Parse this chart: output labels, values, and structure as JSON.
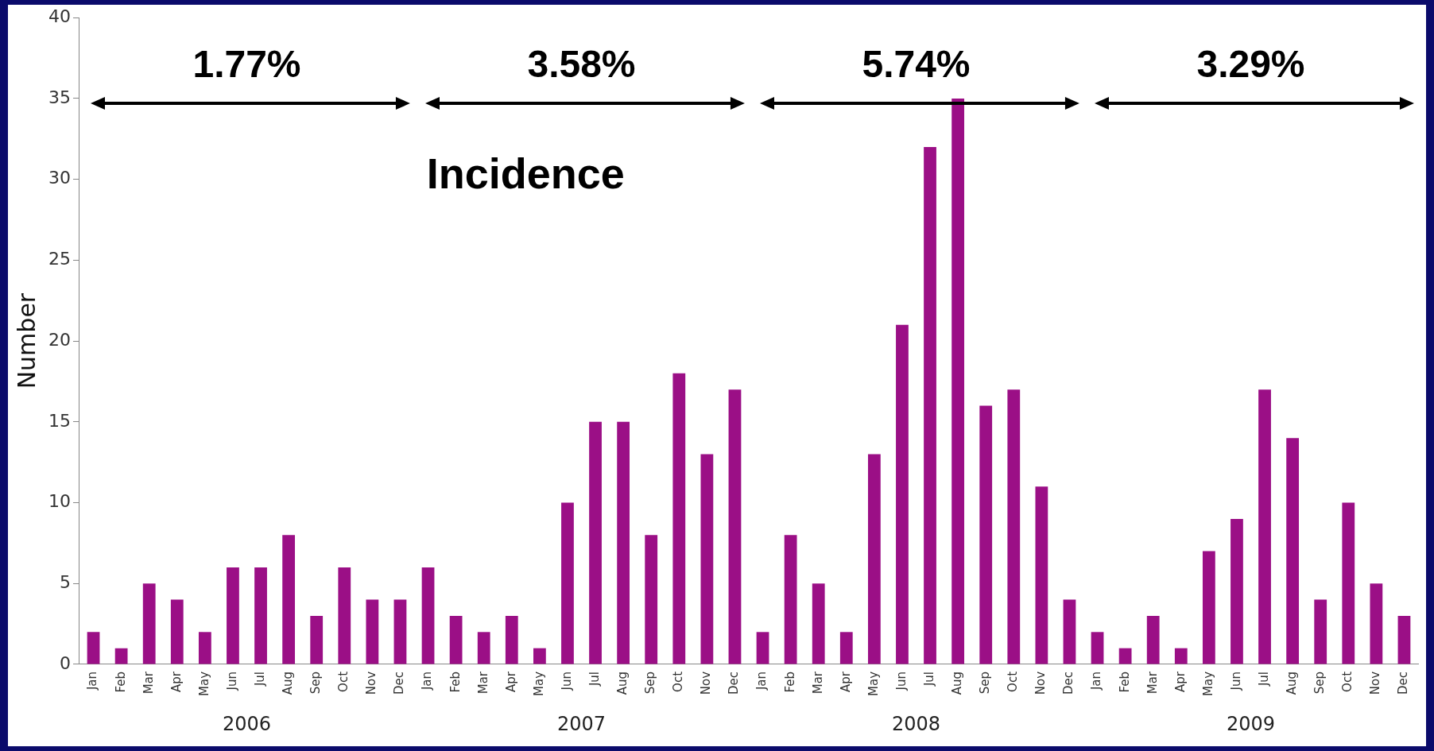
{
  "chart_data": {
    "type": "bar",
    "ylabel": "Number",
    "categories": [
      "Jan",
      "Feb",
      "Mar",
      "Apr",
      "May",
      "Jun",
      "Jul",
      "Aug",
      "Sep",
      "Oct",
      "Nov",
      "Dec",
      "Jan",
      "Feb",
      "Mar",
      "Apr",
      "May",
      "Jun",
      "Jul",
      "Aug",
      "Sep",
      "Oct",
      "Nov",
      "Dec",
      "Jan",
      "Feb",
      "Mar",
      "Apr",
      "May",
      "Jun",
      "Jul",
      "Aug",
      "Sep",
      "Oct",
      "Nov",
      "Dec",
      "Jan",
      "Feb",
      "Mar",
      "Apr",
      "May",
      "Jun",
      "Jul",
      "Aug",
      "Sep",
      "Oct",
      "Nov",
      "Dec"
    ],
    "values": [
      2,
      1,
      5,
      4,
      2,
      6,
      6,
      8,
      3,
      6,
      4,
      4,
      6,
      3,
      2,
      3,
      1,
      10,
      15,
      15,
      8,
      18,
      13,
      17,
      2,
      8,
      5,
      2,
      13,
      21,
      32,
      35,
      16,
      17,
      11,
      4,
      2,
      1,
      3,
      1,
      7,
      9,
      17,
      14,
      4,
      10,
      5,
      3
    ],
    "color": "#9b0f86",
    "ylim": [
      0,
      40
    ],
    "yticks": [
      0,
      5,
      10,
      15,
      20,
      25,
      30,
      35,
      40
    ],
    "grid": false,
    "annotations": [
      "1.77%",
      "3.58%",
      "5.74%",
      "3.29%",
      "Incidence",
      "2006",
      "2007",
      "2008",
      "2009"
    ]
  }
}
